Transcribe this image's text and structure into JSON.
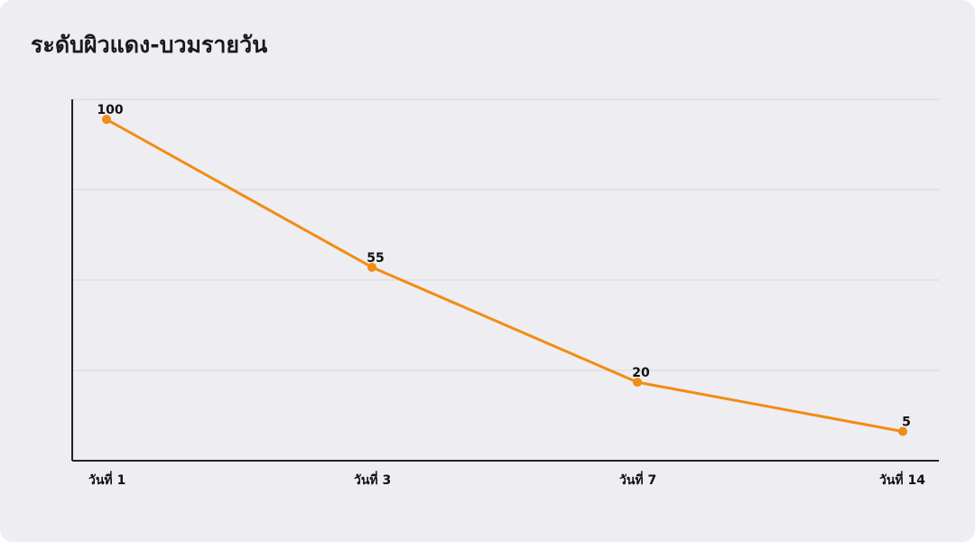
{
  "chart_data": {
    "type": "line",
    "title": "ระดับผิวแดง-บวมรายวัน",
    "xlabel": "",
    "ylabel": "",
    "categories": [
      "วันที่ 1",
      "วันที่ 3",
      "วันที่ 7",
      "วันที่ 14"
    ],
    "series": [
      {
        "values": [
          100,
          55,
          20,
          5
        ],
        "color": "#f28c13"
      }
    ],
    "ylim": [
      -5,
      105
    ],
    "grid": true,
    "legend": "none"
  }
}
